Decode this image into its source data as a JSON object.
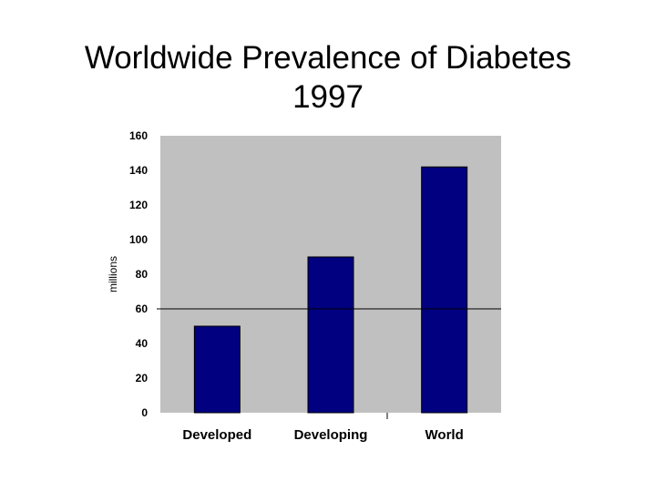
{
  "chart_data": {
    "type": "bar",
    "title": "Worldwide Prevalence of Diabetes",
    "subtitle": "1997",
    "xlabel": "",
    "ylabel": "millions",
    "categories": [
      "Developed",
      "Developing",
      "World"
    ],
    "values": [
      50,
      90,
      142
    ],
    "ylim": [
      0,
      160
    ],
    "yticks": [
      0,
      20,
      40,
      60,
      80,
      100,
      120,
      140,
      160
    ],
    "reference_line": 60,
    "grid": false,
    "legend": "none",
    "colors": {
      "bar": "#000080",
      "plot_background": "#c0c0c0",
      "reference_line": "#000000"
    }
  }
}
